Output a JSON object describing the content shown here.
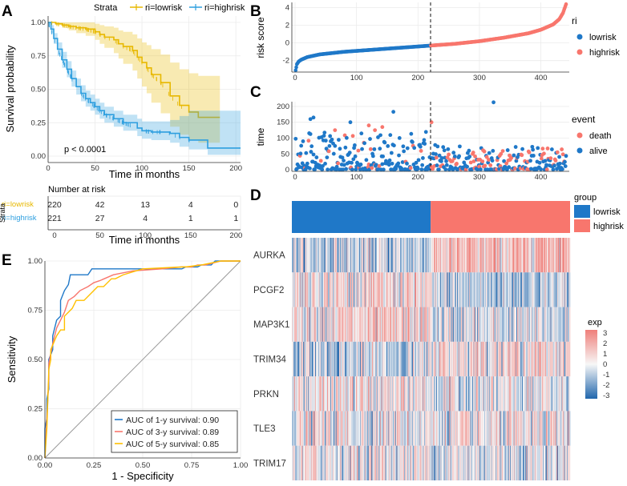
{
  "colors": {
    "lowrisk_km": "#E7B800",
    "highrisk_km": "#2E9FDF",
    "lowrisk": "#1F78C8",
    "highrisk": "#F8766D",
    "heat_low": "#2166AC",
    "heat_mid": "#F7F7F7",
    "heat_high": "#EF7F7A",
    "roc1": "#1F78C8",
    "roc3": "#F8766D",
    "roc5": "#FFC000",
    "grid": "#EBEBEB"
  },
  "chart_data": [
    {
      "panel": "A",
      "type": "line",
      "title": "",
      "legend_title": "Strata",
      "legend_entries": [
        "ri=lowrisk",
        "ri=highrisk"
      ],
      "xlabel": "Time in months",
      "ylabel": "Survival probability",
      "xlim": [
        0,
        205
      ],
      "ylim": [
        0,
        1
      ],
      "xticks": [
        "0",
        "50",
        "100",
        "150",
        "200"
      ],
      "yticks": [
        "0.00",
        "0.25",
        "0.50",
        "0.75",
        "1.00"
      ],
      "annotation": "p < 0.0001",
      "series": [
        {
          "name": "ri=lowrisk",
          "x": [
            0,
            8,
            15,
            22,
            30,
            40,
            50,
            55,
            60,
            70,
            75,
            80,
            90,
            95,
            100,
            105,
            110,
            120,
            130,
            140,
            150,
            160,
            183
          ],
          "y": [
            1.0,
            0.99,
            0.98,
            0.97,
            0.96,
            0.95,
            0.93,
            0.91,
            0.89,
            0.87,
            0.84,
            0.82,
            0.79,
            0.74,
            0.7,
            0.66,
            0.61,
            0.55,
            0.45,
            0.38,
            0.33,
            0.29,
            0.29
          ],
          "lower": [
            1.0,
            0.98,
            0.96,
            0.94,
            0.92,
            0.9,
            0.87,
            0.84,
            0.81,
            0.77,
            0.73,
            0.69,
            0.64,
            0.58,
            0.52,
            0.47,
            0.4,
            0.32,
            0.22,
            0.16,
            0.12,
            0.1,
            0.1
          ],
          "upper": [
            1.0,
            1.0,
            1.0,
            1.0,
            1.0,
            1.0,
            0.99,
            0.98,
            0.97,
            0.96,
            0.94,
            0.93,
            0.91,
            0.88,
            0.85,
            0.83,
            0.8,
            0.76,
            0.7,
            0.65,
            0.62,
            0.6,
            0.6
          ]
        },
        {
          "name": "ri=highrisk",
          "x": [
            0,
            3,
            6,
            10,
            15,
            20,
            25,
            30,
            35,
            40,
            45,
            50,
            55,
            60,
            70,
            80,
            95,
            100,
            110,
            120,
            130,
            140,
            150,
            170,
            205
          ],
          "y": [
            1.0,
            0.95,
            0.88,
            0.8,
            0.72,
            0.65,
            0.58,
            0.52,
            0.47,
            0.43,
            0.4,
            0.37,
            0.34,
            0.31,
            0.28,
            0.25,
            0.21,
            0.19,
            0.18,
            0.18,
            0.17,
            0.14,
            0.12,
            0.06,
            0.06
          ],
          "lower": [
            1.0,
            0.92,
            0.84,
            0.75,
            0.66,
            0.59,
            0.52,
            0.46,
            0.41,
            0.37,
            0.34,
            0.31,
            0.28,
            0.25,
            0.22,
            0.19,
            0.15,
            0.13,
            0.12,
            0.12,
            0.1,
            0.07,
            0.05,
            0.01,
            0.01
          ],
          "upper": [
            1.0,
            0.98,
            0.92,
            0.85,
            0.78,
            0.71,
            0.64,
            0.58,
            0.53,
            0.49,
            0.46,
            0.43,
            0.4,
            0.37,
            0.34,
            0.31,
            0.28,
            0.26,
            0.26,
            0.26,
            0.27,
            0.3,
            0.34,
            0.34,
            0.34
          ]
        }
      ]
    },
    {
      "panel": "A-risk-table",
      "type": "table",
      "title": "Number at risk",
      "ylabel": "Strata",
      "xlabel": "Time in months",
      "xticks": [
        "0",
        "50",
        "100",
        "150",
        "200"
      ],
      "rows": [
        {
          "name": "ri=lowrisk",
          "values": [
            "220",
            "42",
            "13",
            "4",
            "0"
          ]
        },
        {
          "name": "ri=highrisk",
          "values": [
            "221",
            "27",
            "4",
            "1",
            "1"
          ]
        }
      ]
    },
    {
      "panel": "B",
      "type": "scatter",
      "xlabel": "",
      "ylabel": "risk score",
      "xlim": [
        0,
        441
      ],
      "ylim": [
        -3.3,
        4.6
      ],
      "xticks": [
        "0",
        "100",
        "200",
        "300",
        "400"
      ],
      "yticks": [
        "-2",
        "0",
        "2",
        "4"
      ],
      "cutoff": 220,
      "legend_title": "ri",
      "legend_entries": [
        "lowrisk",
        "highrisk"
      ],
      "curve": {
        "x": [
          1,
          3,
          6,
          10,
          20,
          40,
          80,
          120,
          160,
          200,
          220,
          260,
          300,
          340,
          380,
          400,
          420,
          430,
          436,
          441
        ],
        "y": [
          -3.1,
          -2.4,
          -2.1,
          -1.9,
          -1.6,
          -1.3,
          -1.0,
          -0.8,
          -0.6,
          -0.4,
          -0.3,
          -0.1,
          0.2,
          0.6,
          1.1,
          1.5,
          2.1,
          2.7,
          3.4,
          4.4
        ]
      }
    },
    {
      "panel": "C",
      "type": "scatter",
      "xlabel": "",
      "ylabel": "time",
      "xlim": [
        0,
        441
      ],
      "ylim": [
        -5,
        215
      ],
      "xticks": [
        "0",
        "100",
        "200",
        "300",
        "400"
      ],
      "yticks": [
        "0",
        "50",
        "100",
        "150",
        "200"
      ],
      "cutoff": 220,
      "legend_title": "event",
      "legend_entries": [
        "death",
        "alive"
      ],
      "notable_points": [
        {
          "x": 323,
          "y": 213,
          "event": "alive"
        },
        {
          "x": 160,
          "y": 183,
          "event": "alive"
        },
        {
          "x": 30,
          "y": 165,
          "event": "alive"
        },
        {
          "x": 25,
          "y": 160,
          "event": "alive"
        },
        {
          "x": 90,
          "y": 150,
          "event": "alive"
        },
        {
          "x": 222,
          "y": 150,
          "event": "death"
        },
        {
          "x": 120,
          "y": 140,
          "event": "death"
        },
        {
          "x": 142,
          "y": 135,
          "event": "death"
        },
        {
          "x": 65,
          "y": 125,
          "event": "death"
        },
        {
          "x": 130,
          "y": 125,
          "event": "death"
        }
      ]
    },
    {
      "panel": "D",
      "type": "heatmap",
      "genes": [
        "AURKA",
        "PCGF2",
        "MAP3K1",
        "TRIM34",
        "PRKN",
        "TLE3",
        "TRIM17"
      ],
      "group_legend_title": "group",
      "group_entries": [
        "lowrisk",
        "highrisk"
      ],
      "n_samples": 441,
      "cutoff": 220,
      "colorbar_title": "exp",
      "colorbar_ticks": [
        "3",
        "2",
        "1",
        "0",
        "-1",
        "-2",
        "-3"
      ],
      "colorbar_range": [
        -3,
        3
      ],
      "pattern_low_group_mean": [
        -0.5,
        0.4,
        0.5,
        -0.5,
        0.2,
        0.1,
        0.1
      ],
      "pattern_high_group_mean": [
        0.8,
        -0.6,
        -0.3,
        0.5,
        -0.2,
        0.0,
        -0.1
      ]
    },
    {
      "panel": "E",
      "type": "line",
      "xlabel": "1 - Specificity",
      "ylabel": "Sensitivity",
      "xlim": [
        0,
        1
      ],
      "ylim": [
        0,
        1
      ],
      "xticks": [
        "0.00",
        "0.25",
        "0.50",
        "0.75",
        "1.00"
      ],
      "yticks": [
        "0.00",
        "0.25",
        "0.50",
        "0.75",
        "1.00"
      ],
      "series": [
        {
          "name": "AUC of 1-y survival: 0.90",
          "x": [
            0,
            0.0,
            0.01,
            0.01,
            0.02,
            0.02,
            0.04,
            0.04,
            0.06,
            0.08,
            0.08,
            0.1,
            0.12,
            0.13,
            0.15,
            0.18,
            0.22,
            0.24,
            0.3,
            0.7,
            0.72,
            0.78,
            0.8,
            0.85,
            0.87,
            0.9,
            0.95,
            1.0
          ],
          "y": [
            0,
            0.15,
            0.2,
            0.3,
            0.35,
            0.5,
            0.55,
            0.62,
            0.7,
            0.72,
            0.8,
            0.85,
            0.88,
            0.93,
            0.93,
            0.93,
            0.93,
            0.96,
            0.96,
            0.96,
            0.97,
            0.97,
            0.98,
            0.98,
            1.0,
            1.0,
            1.0,
            1.0
          ]
        },
        {
          "name": "AUC of 3-y survival: 0.89",
          "x": [
            0,
            0.01,
            0.02,
            0.02,
            0.04,
            0.06,
            0.08,
            0.1,
            0.12,
            0.15,
            0.18,
            0.22,
            0.25,
            0.28,
            0.35,
            0.45,
            0.6,
            0.7,
            0.75,
            0.78,
            0.82,
            0.86,
            0.9,
            1.0
          ],
          "y": [
            0,
            0.2,
            0.4,
            0.48,
            0.58,
            0.66,
            0.7,
            0.74,
            0.8,
            0.82,
            0.85,
            0.87,
            0.89,
            0.9,
            0.93,
            0.95,
            0.96,
            0.97,
            0.97,
            0.98,
            0.98,
            0.99,
            1.0,
            1.0
          ]
        },
        {
          "name": "AUC of 5-y survival: 0.85",
          "x": [
            0,
            0.01,
            0.02,
            0.03,
            0.03,
            0.06,
            0.08,
            0.1,
            0.1,
            0.14,
            0.16,
            0.2,
            0.24,
            0.27,
            0.3,
            0.34,
            0.36,
            0.4,
            0.5,
            0.7,
            0.72,
            0.8,
            0.85,
            0.9,
            1.0
          ],
          "y": [
            0,
            0.15,
            0.45,
            0.5,
            0.55,
            0.62,
            0.65,
            0.65,
            0.72,
            0.76,
            0.8,
            0.8,
            0.84,
            0.87,
            0.87,
            0.91,
            0.91,
            0.93,
            0.96,
            0.97,
            0.97,
            0.98,
            0.99,
            1.0,
            1.0
          ]
        }
      ]
    }
  ],
  "panels": {
    "a": {
      "letter": "A",
      "legend_title": "Strata",
      "legend_low": "ri=lowrisk",
      "legend_high": "ri=highrisk",
      "pvalue": "p < 0.0001",
      "xlabel": "Time in months",
      "ylabel": "Survival probability",
      "xticks": [
        "0",
        "50",
        "100",
        "150",
        "200"
      ],
      "yticks": [
        "0.00",
        "0.25",
        "0.50",
        "0.75",
        "1.00"
      ]
    },
    "table": {
      "title": "Number at risk",
      "strata_label": "Strata",
      "row_low": "ri=lowrisk",
      "row_high": "ri=highrisk",
      "xlabel": "Time in months"
    },
    "b": {
      "letter": "B",
      "ylabel": "risk score",
      "legend_title": "ri",
      "legend_low": "lowrisk",
      "legend_high": "highrisk"
    },
    "c": {
      "letter": "C",
      "ylabel": "time",
      "legend_title": "event",
      "legend_death": "death",
      "legend_alive": "alive"
    },
    "d": {
      "letter": "D",
      "legend_title": "group",
      "legend_low": "lowrisk",
      "legend_high": "highrisk",
      "cbar_title": "exp"
    },
    "e": {
      "letter": "E",
      "xlabel": "1 - Specificity",
      "ylabel": "Sensitivity"
    }
  }
}
